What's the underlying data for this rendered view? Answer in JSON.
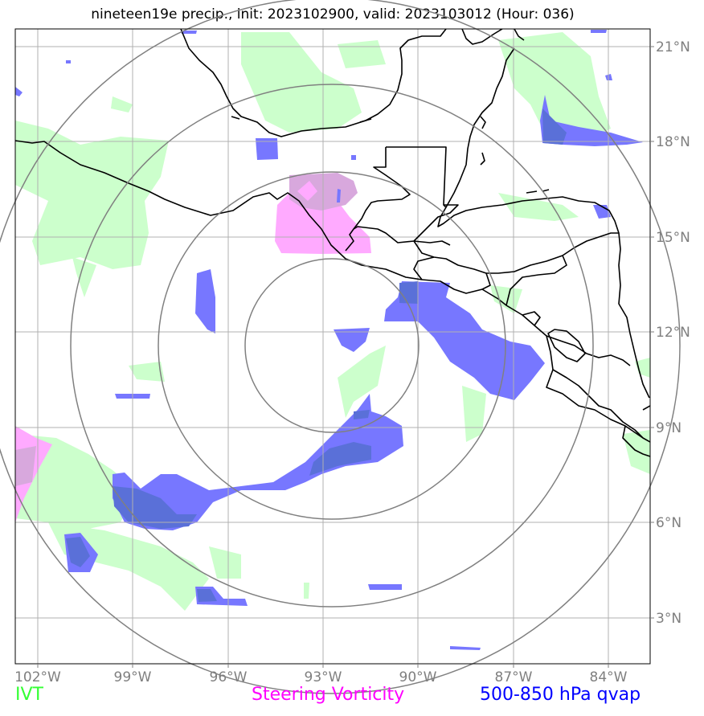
{
  "title": "nineteen19e precip., init: 2023102900, valid: 2023103012 (Hour: 036)",
  "legend": {
    "ivt": {
      "label": "IVT",
      "color": "#33ff33"
    },
    "vorticity": {
      "label": "Steering Vorticity",
      "color": "#ff00ff"
    },
    "qvap": {
      "label": "500-850 hPa qvap",
      "color": "#0000ff"
    }
  },
  "axes": {
    "lon_labels": [
      "102°W",
      "99°W",
      "96°W",
      "93°W",
      "90°W",
      "87°W",
      "84°W"
    ],
    "lat_labels": [
      "21°N",
      "18°N",
      "15°N",
      "12°N",
      "9°N",
      "6°N",
      "3°N"
    ]
  },
  "fill_colors": {
    "ivt": "#ccffcc",
    "vorticity": "#ffaaff",
    "qvap": "#7777ff",
    "qvap_dark": "#5a70d8",
    "overlap": "#d8a8dd"
  }
}
